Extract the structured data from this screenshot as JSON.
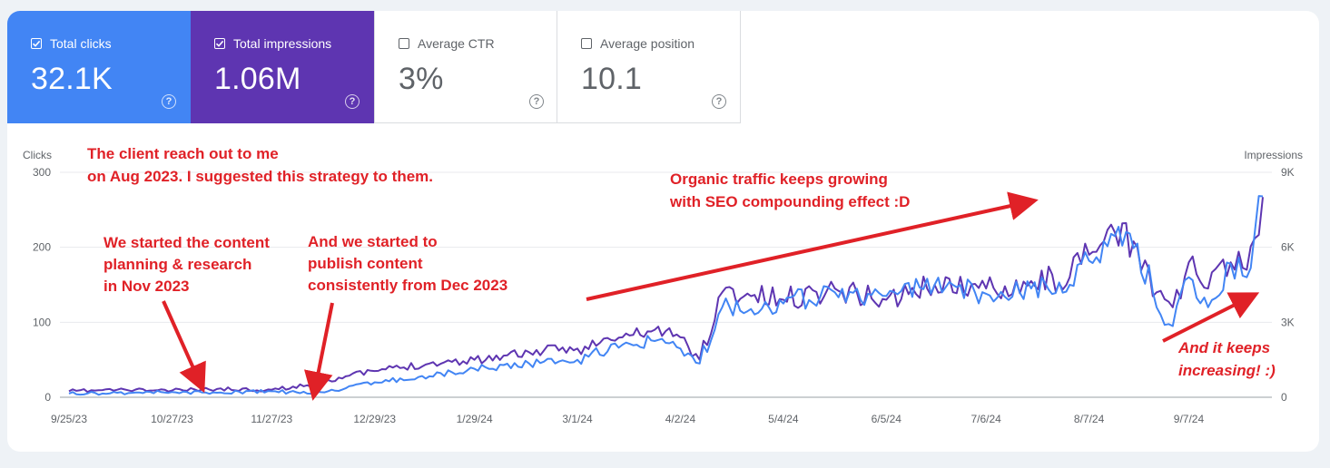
{
  "metrics": {
    "clicks": {
      "label": "Total clicks",
      "value": "32.1K",
      "checked": true,
      "color": "#4285f4"
    },
    "impressions": {
      "label": "Total impressions",
      "value": "1.06M",
      "checked": true,
      "color": "#5e35b1"
    },
    "ctr": {
      "label": "Average CTR",
      "value": "3%",
      "checked": false
    },
    "position": {
      "label": "Average position",
      "value": "10.1",
      "checked": false
    }
  },
  "help_glyph": "?",
  "annotation_color": "#e02127",
  "annotations": {
    "client": [
      "The client reach out to me",
      "on Aug 2023. I suggested this strategy to them."
    ],
    "planning": [
      "We started the content",
      "planning & research",
      "in Nov 2023"
    ],
    "publish": [
      "And we started to",
      "publish content",
      "consistently from Dec 2023"
    ],
    "organic": [
      "Organic traffic keeps growing",
      "with SEO compounding effect :D"
    ],
    "increasing": [
      "And it keeps",
      "increasing! :)"
    ]
  },
  "chart_data": {
    "type": "line",
    "x_tick_labels": [
      "9/25/23",
      "10/27/23",
      "11/27/23",
      "12/29/23",
      "1/29/24",
      "3/1/24",
      "4/2/24",
      "5/4/24",
      "6/5/24",
      "7/6/24",
      "8/7/24",
      "9/7/24"
    ],
    "x_range": [
      "9/25/23",
      "9/30/24"
    ],
    "ylabel_left": "Clicks",
    "ylabel_right": "Impressions",
    "y_left": {
      "ticks": [
        "0",
        "100",
        "200",
        "300"
      ],
      "range": [
        0,
        300
      ]
    },
    "y_right": {
      "ticks": [
        "0",
        "3K",
        "6K",
        "9K"
      ],
      "range": [
        0,
        9000
      ]
    },
    "grid": true,
    "series": [
      {
        "name": "Clicks",
        "axis": "left",
        "color": "#4285f4",
        "x": [
          "9/25/23",
          "10/10/23",
          "10/27/23",
          "11/10/23",
          "11/27/23",
          "12/8/23",
          "12/20/23",
          "12/29/23",
          "1/15/24",
          "1/29/24",
          "2/15/24",
          "3/1/24",
          "3/15/24",
          "3/25/24",
          "4/2/24",
          "4/8/24",
          "4/15/24",
          "5/4/24",
          "5/20/24",
          "6/5/24",
          "6/20/24",
          "7/6/24",
          "7/20/24",
          "8/1/24",
          "8/7/24",
          "8/15/24",
          "8/22/24",
          "8/28/24",
          "9/2/24",
          "9/7/24",
          "9/13/24",
          "9/20/24",
          "9/25/24",
          "9/30/24"
        ],
        "y": [
          5,
          6,
          7,
          6,
          8,
          5,
          12,
          20,
          28,
          38,
          45,
          50,
          70,
          75,
          65,
          45,
          120,
          125,
          140,
          135,
          150,
          138,
          145,
          150,
          182,
          215,
          205,
          120,
          95,
          160,
          120,
          178,
          160,
          268
        ]
      },
      {
        "name": "Impressions",
        "axis": "right",
        "color": "#5e35b1",
        "x": [
          "9/25/23",
          "10/10/23",
          "10/27/23",
          "11/10/23",
          "11/27/23",
          "12/8/23",
          "12/20/23",
          "12/29/23",
          "1/15/24",
          "1/29/24",
          "2/15/24",
          "3/1/24",
          "3/15/24",
          "3/25/24",
          "4/2/24",
          "4/8/24",
          "4/15/24",
          "5/4/24",
          "5/20/24",
          "6/5/24",
          "6/20/24",
          "7/6/24",
          "7/20/24",
          "8/1/24",
          "8/7/24",
          "8/15/24",
          "8/22/24",
          "8/28/24",
          "9/2/24",
          "9/7/24",
          "9/13/24",
          "9/20/24",
          "9/25/24",
          "9/30/24"
        ],
        "y": [
          240,
          300,
          270,
          330,
          300,
          480,
          840,
          1050,
          1350,
          1500,
          1800,
          1950,
          2400,
          2700,
          2400,
          1500,
          4200,
          3900,
          4350,
          3900,
          4500,
          4350,
          4650,
          4800,
          5700,
          6600,
          6000,
          4200,
          3600,
          5400,
          4350,
          5400,
          5100,
          8010
        ]
      }
    ]
  }
}
